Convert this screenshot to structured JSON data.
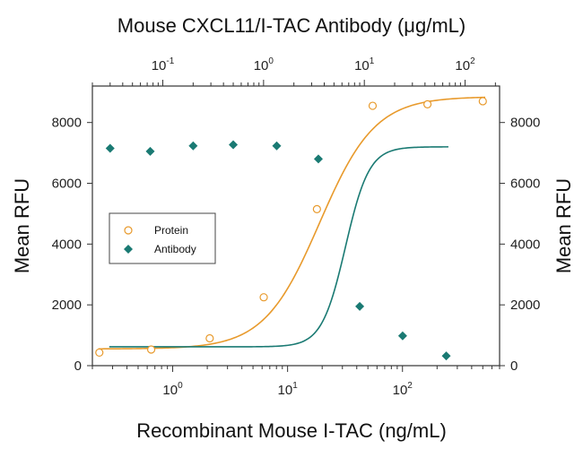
{
  "chart_data": {
    "type": "scatter",
    "title": "Mouse CXCL11/I-TAC Antibody (μg/mL)",
    "xlabel": "Recombinant Mouse I-TAC (ng/mL)",
    "ylabel": "Mean RFU",
    "ylabel_right": "Mean RFU",
    "x_scale": "log",
    "xlim": [
      0.2,
      700
    ],
    "ylim": [
      0,
      9200
    ],
    "y_ticks": [
      0,
      2000,
      4000,
      6000,
      8000
    ],
    "x_ticks_bottom": [
      {
        "value": 1,
        "base": "10",
        "exp": "0"
      },
      {
        "value": 10,
        "base": "10",
        "exp": "1"
      },
      {
        "value": 100,
        "base": "10",
        "exp": "2"
      }
    ],
    "top_axis": {
      "label": "Mouse CXCL11/I-TAC Antibody (μg/mL)",
      "scale": "log",
      "xlim": [
        0.02,
        220
      ],
      "ticks": [
        {
          "value": 0.1,
          "base": "10",
          "exp": "-1"
        },
        {
          "value": 1,
          "base": "10",
          "exp": "0"
        },
        {
          "value": 10,
          "base": "10",
          "exp": "1"
        },
        {
          "value": 100,
          "base": "10",
          "exp": "2"
        }
      ]
    },
    "legend": {
      "position": "left-middle"
    },
    "series": [
      {
        "name": "Protein",
        "marker": "open-circle",
        "color": "#e89a2c",
        "x": [
          0.23,
          0.65,
          2.1,
          6.2,
          18,
          55,
          165,
          500
        ],
        "y": [
          430,
          530,
          900,
          2250,
          5150,
          8550,
          8600,
          8700
        ],
        "fit": {
          "bottom": 550,
          "top": 8850,
          "ec50": 19,
          "hill": 1.8,
          "axis": "bottom"
        }
      },
      {
        "name": "Antibody",
        "marker": "filled-diamond",
        "color": "#1a7a73",
        "x": [
          0.03,
          0.075,
          0.2,
          0.5,
          1.35,
          3.5,
          9,
          24,
          65
        ],
        "y": [
          7150,
          7050,
          7230,
          7270,
          7230,
          6800,
          1950,
          980,
          320
        ],
        "fit": {
          "bottom": 620,
          "top": 7200,
          "ec50": 6.5,
          "hill": 3.7,
          "axis": "top"
        }
      }
    ]
  }
}
